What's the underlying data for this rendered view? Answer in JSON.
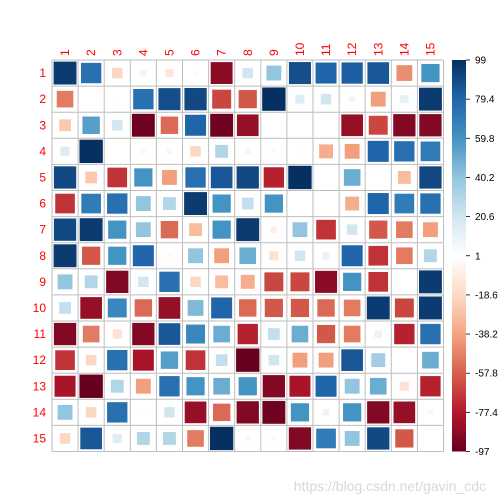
{
  "chart_data": {
    "type": "heatmap",
    "title": "",
    "xlabel": "",
    "ylabel": "",
    "style": "square-corrplot",
    "labels": [
      "1",
      "2",
      "3",
      "4",
      "5",
      "6",
      "7",
      "8",
      "9",
      "10",
      "11",
      "12",
      "13",
      "14",
      "15"
    ],
    "matrix": [
      [
        95,
        75,
        -20,
        8,
        -12,
        -3,
        -87,
        20,
        40,
        88,
        80,
        82,
        85,
        -45,
        60
      ],
      [
        -50,
        0,
        -2,
        75,
        88,
        90,
        -65,
        -60,
        99,
        15,
        20,
        -6,
        -40,
        12,
        95
      ],
      [
        -25,
        55,
        20,
        -95,
        -55,
        80,
        -95,
        -85,
        0,
        0,
        0,
        -85,
        -65,
        -90,
        -90
      ],
      [
        15,
        99,
        0,
        -4,
        -5,
        -20,
        30,
        -6,
        -3,
        -2,
        -35,
        -40,
        80,
        75,
        70
      ],
      [
        90,
        -25,
        -70,
        60,
        -40,
        75,
        85,
        90,
        -75,
        99,
        0,
        50,
        0,
        -30,
        90
      ],
      [
        -70,
        70,
        75,
        40,
        30,
        95,
        60,
        25,
        60,
        0,
        0,
        -35,
        80,
        70,
        75
      ],
      [
        90,
        95,
        60,
        40,
        -55,
        -30,
        60,
        95,
        -8,
        40,
        -70,
        20,
        -60,
        -50,
        -40
      ],
      [
        95,
        -60,
        60,
        80,
        -3,
        40,
        -40,
        50,
        -15,
        20,
        10,
        80,
        -70,
        -50,
        30
      ],
      [
        40,
        30,
        -90,
        20,
        75,
        -20,
        -30,
        -35,
        -65,
        -65,
        -88,
        60,
        -70,
        0,
        95
      ],
      [
        25,
        -85,
        65,
        -55,
        -85,
        45,
        80,
        -55,
        -60,
        -60,
        -55,
        -50,
        95,
        -65,
        95
      ],
      [
        -90,
        -50,
        -15,
        -90,
        85,
        65,
        50,
        -75,
        25,
        50,
        -60,
        -50,
        10,
        -75,
        75
      ],
      [
        -70,
        -20,
        75,
        -80,
        55,
        -70,
        25,
        -99,
        20,
        -40,
        -40,
        85,
        35,
        0,
        50
      ],
      [
        -80,
        -99,
        30,
        -40,
        75,
        60,
        50,
        60,
        -90,
        -80,
        80,
        40,
        50,
        -15,
        -75
      ],
      [
        40,
        -20,
        75,
        3,
        20,
        -85,
        -55,
        -90,
        -95,
        60,
        8,
        60,
        -90,
        -85,
        5
      ],
      [
        -20,
        85,
        15,
        30,
        30,
        -50,
        99,
        -5,
        5,
        -90,
        70,
        40,
        90,
        -60,
        0
      ]
    ],
    "colorbar": {
      "ticks": [
        "99",
        "79.4",
        "59.8",
        "40.2",
        "20.6",
        "1",
        "-18.6",
        "-38.2",
        "-57.8",
        "-77.4",
        "-97"
      ],
      "min": -97,
      "max": 99,
      "colors": [
        "#67001f",
        "#b2182b",
        "#d6604d",
        "#f4a582",
        "#fddbc7",
        "#ffffff",
        "#d1e5f0",
        "#92c5de",
        "#4393c3",
        "#2166ac",
        "#053061"
      ]
    },
    "label_color": "#ff0000",
    "grid_color": "#bebebe"
  },
  "watermark": "https://blog.csdn.net/gavin_cdc"
}
